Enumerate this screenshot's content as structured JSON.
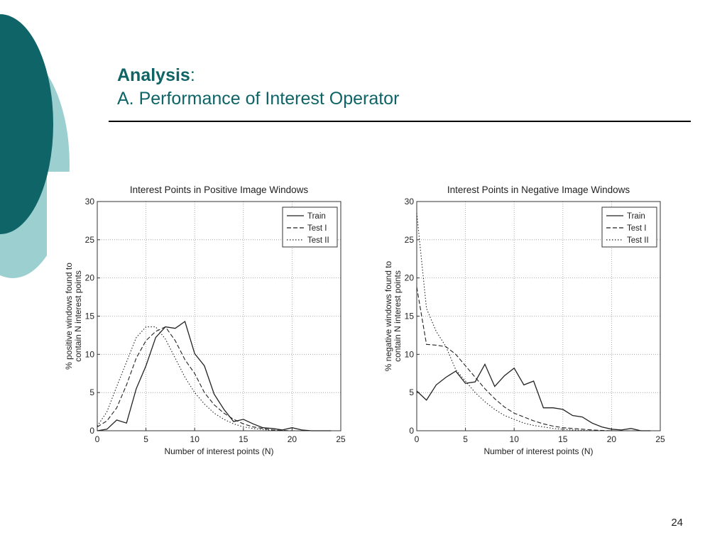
{
  "slide": {
    "title_bold": "Analysis",
    "title_colon": ":",
    "subtitle": "A. Performance of Interest Operator",
    "page_number": "24"
  },
  "colors": {
    "title": "#0e6466",
    "deco_dark": "#0e6466",
    "deco_light": "#9ccfd0"
  },
  "chart_data": [
    {
      "type": "line",
      "title": "Interest Points in Positive Image Windows",
      "xlabel": "Number of interest points (N)",
      "ylabel_lines": [
        "% positive windows found to",
        "contain N interest points"
      ],
      "xlim": [
        0,
        25
      ],
      "ylim": [
        0,
        30
      ],
      "xticks": [
        "0",
        "5",
        "10",
        "15",
        "20",
        "25"
      ],
      "yticks": [
        "0",
        "5",
        "10",
        "15",
        "20",
        "25",
        "30"
      ],
      "grid": true,
      "legend_position": "top-right",
      "x": [
        0,
        1,
        2,
        3,
        4,
        5,
        6,
        7,
        8,
        9,
        10,
        11,
        12,
        13,
        14,
        15,
        16,
        17,
        18,
        19,
        20,
        21,
        22,
        23,
        24
      ],
      "series": [
        {
          "name": "Train",
          "style": "solid",
          "values": [
            0,
            0.2,
            1.4,
            1.0,
            5.5,
            8.5,
            12.2,
            13.6,
            13.4,
            14.3,
            10.1,
            8.5,
            4.8,
            2.8,
            1.2,
            1.5,
            0.9,
            0.4,
            0.3,
            0.1,
            0.4,
            0.1,
            0,
            0,
            0
          ]
        },
        {
          "name": "Test I",
          "style": "dashed",
          "values": [
            0.5,
            1.3,
            3.0,
            6.0,
            9.5,
            11.8,
            13.0,
            13.6,
            11.8,
            9.3,
            7.5,
            5.0,
            3.4,
            2.3,
            1.5,
            0.9,
            0.5,
            0.3,
            0.1,
            0.05,
            0,
            0,
            0,
            0,
            0
          ]
        },
        {
          "name": "Test II",
          "style": "dotted",
          "values": [
            0.6,
            2.5,
            5.8,
            9.0,
            12.2,
            13.6,
            13.6,
            12.0,
            9.5,
            7.0,
            5.0,
            3.5,
            2.3,
            1.5,
            0.9,
            0.5,
            0.3,
            0.15,
            0.05,
            0,
            0,
            0,
            0,
            0,
            0
          ]
        }
      ]
    },
    {
      "type": "line",
      "title": "Interest Points in Negative Image Windows",
      "xlabel": "Number of interest points (N)",
      "ylabel_lines": [
        "% negative windows found to",
        "contain N interest points"
      ],
      "xlim": [
        0,
        25
      ],
      "ylim": [
        0,
        30
      ],
      "xticks": [
        "0",
        "5",
        "10",
        "15",
        "20",
        "25"
      ],
      "yticks": [
        "0",
        "5",
        "10",
        "15",
        "20",
        "25",
        "30"
      ],
      "grid": true,
      "legend_position": "top-right",
      "x": [
        0,
        1,
        2,
        3,
        4,
        5,
        6,
        7,
        8,
        9,
        10,
        11,
        12,
        13,
        14,
        15,
        16,
        17,
        18,
        19,
        20,
        21,
        22,
        23,
        24
      ],
      "series": [
        {
          "name": "Train",
          "style": "solid",
          "values": [
            5.2,
            4.0,
            6.0,
            7.0,
            7.8,
            6.2,
            6.4,
            8.7,
            5.8,
            7.2,
            8.2,
            6.0,
            6.5,
            3.0,
            3.0,
            2.8,
            2.0,
            1.8,
            1.0,
            0.5,
            0.2,
            0.1,
            0.3,
            0,
            0
          ]
        },
        {
          "name": "Test I",
          "style": "dashed",
          "values": [
            18.8,
            11.3,
            11.2,
            11.0,
            10.0,
            8.5,
            7.0,
            5.5,
            4.2,
            3.1,
            2.3,
            1.8,
            1.3,
            0.9,
            0.6,
            0.4,
            0.3,
            0.2,
            0.1,
            0.05,
            0,
            0,
            0,
            0,
            0
          ]
        },
        {
          "name": "Test II",
          "style": "dotted",
          "values": [
            28.5,
            16.0,
            13.0,
            11.0,
            8.0,
            6.5,
            5.0,
            3.8,
            2.8,
            2.0,
            1.5,
            1.0,
            0.7,
            0.5,
            0.3,
            0.2,
            0.1,
            0.05,
            0,
            0,
            0,
            0,
            0,
            0,
            0
          ]
        }
      ]
    }
  ]
}
